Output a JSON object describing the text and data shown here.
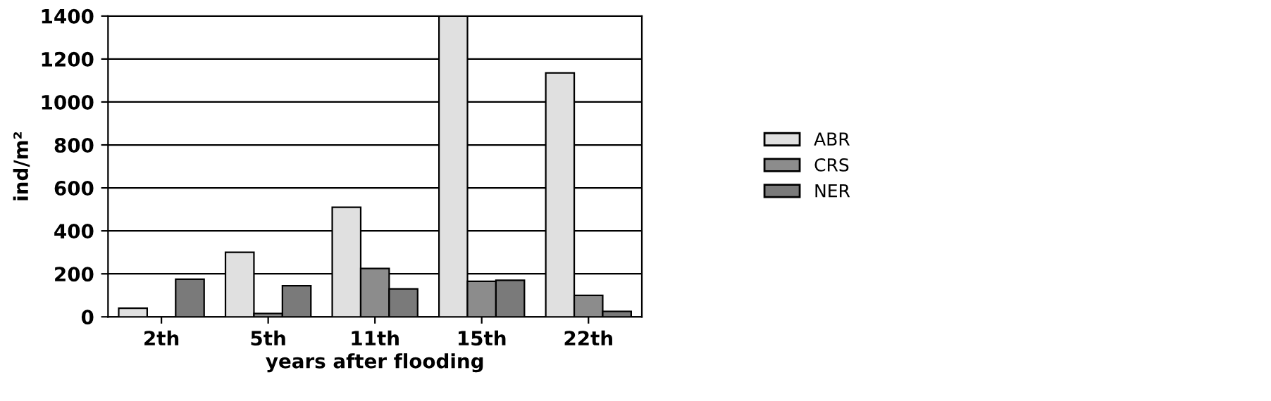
{
  "chart_data": {
    "type": "bar",
    "xlabel": "years after flooding",
    "ylabel": "ind/m²",
    "categories": [
      "2th",
      "5th",
      "11th",
      "15th",
      "22th"
    ],
    "series": [
      {
        "name": "ABR",
        "color": "#e0e0e0",
        "values": [
          40,
          300,
          510,
          1400,
          1135
        ]
      },
      {
        "name": "CRS",
        "color": "#8c8c8c",
        "values": [
          null,
          15,
          225,
          165,
          100
        ]
      },
      {
        "name": "NER",
        "color": "#7a7a7a",
        "values": [
          175,
          145,
          130,
          170,
          25
        ]
      }
    ],
    "ylim": [
      0,
      1400
    ],
    "yticks": [
      0,
      200,
      400,
      600,
      800,
      1000,
      1200,
      1400
    ],
    "grid": "y",
    "legend": "right"
  }
}
